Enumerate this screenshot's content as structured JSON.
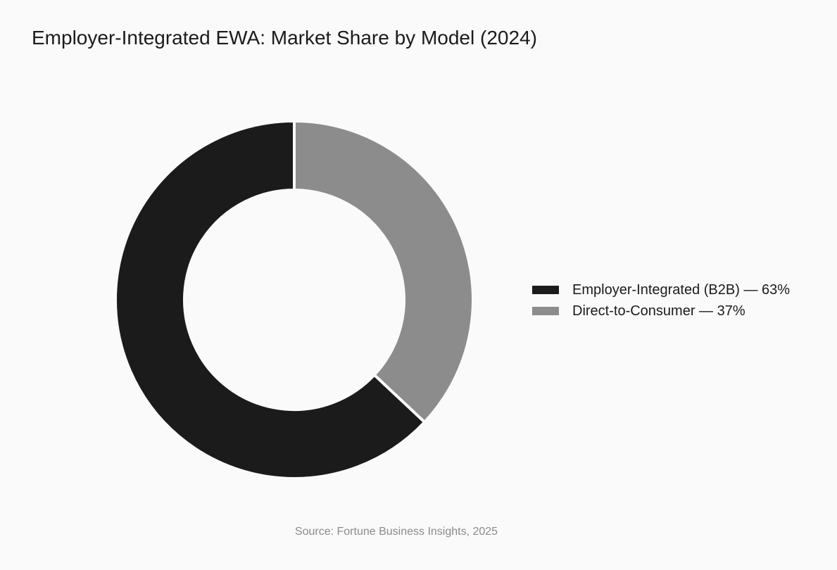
{
  "chart_data": {
    "type": "pie",
    "style": "donut",
    "title": "Employer-Integrated EWA: Market Share by Model (2024)",
    "slices": [
      {
        "label": "Employer-Integrated (B2B) — 63%",
        "value": 63,
        "color": "#1b1b1b"
      },
      {
        "label": "Direct-to-Consumer — 37%",
        "value": 37,
        "color": "#8c8c8c"
      }
    ],
    "legend_position": "right",
    "source": "Source: Fortune Business Insights, 2025"
  }
}
